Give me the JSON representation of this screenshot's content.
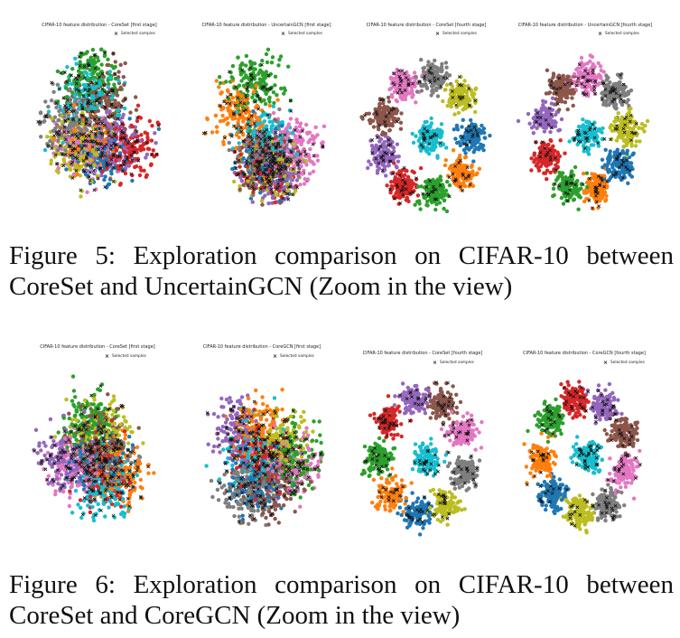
{
  "figure5": {
    "caption": "Figure 5: Exploration comparison on CIFAR-10 between CoreSet and UncertainGCN (Zoom in the view)",
    "panels": [
      {
        "title": "CIFAR-10 feature distribution - CoreSet [first stage]",
        "legend": "Selected samples"
      },
      {
        "title": "CIFAR-10 feature distribution - UncertainGCN [first stage]",
        "legend": "Selected samples"
      },
      {
        "title": "CIFAR-10 feature distribution - CoreSet [fourth stage]",
        "legend": "Selected samples"
      },
      {
        "title": "CIFAR-10 feature distribution - UncertainGCN [fourth stage]",
        "legend": "Selected samples"
      }
    ]
  },
  "figure6": {
    "caption": "Figure 6: Exploration comparison on CIFAR-10 between CoreSet and CoreGCN (Zoom in the view)",
    "panels": [
      {
        "title": "CIFAR-10 feature distribution - CoreSet [first stage]",
        "legend": "Selected samples"
      },
      {
        "title": "CIFAR-10 feature distribution - CoreGCN [first stage]",
        "legend": "Selected samples"
      },
      {
        "title": "CIFAR-10 feature distribution - CoreSet [fourth stage]",
        "legend": "Selected samples"
      },
      {
        "title": "CIFAR-10 feature distribution - CoreGCN [fourth stage]",
        "legend": "Selected samples"
      }
    ]
  },
  "legend_marker": "×",
  "class_colors": [
    "#1f77b4",
    "#ff7f0e",
    "#2ca02c",
    "#d62728",
    "#9467bd",
    "#8c564b",
    "#e377c2",
    "#7f7f7f",
    "#bcbd22",
    "#17becf"
  ],
  "selected_marker_color": "#111111"
}
